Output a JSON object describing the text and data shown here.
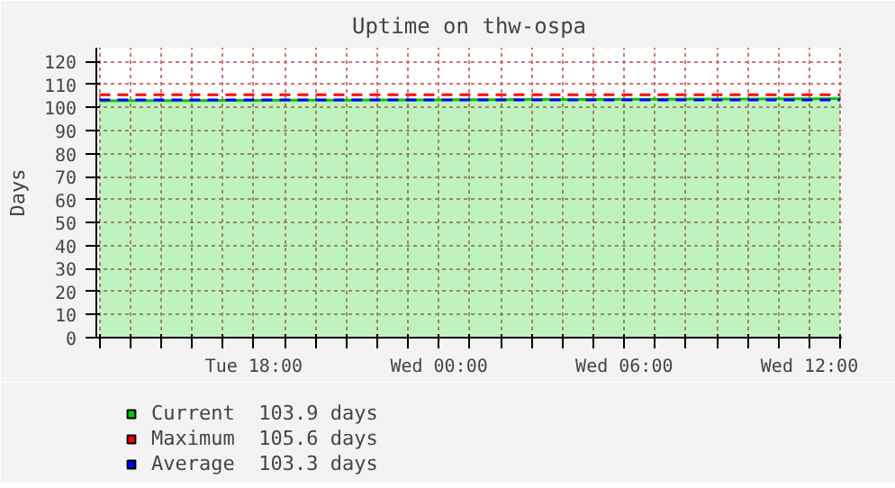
{
  "chart_data": {
    "type": "area",
    "title": "Uptime on thw-ospa",
    "ylabel": "Days",
    "categories": [
      null,
      null,
      null,
      null,
      null,
      "Tue 18:00",
      null,
      null,
      null,
      null,
      null,
      "Wed 00:00",
      null,
      null,
      null,
      null,
      null,
      "Wed 06:00",
      null,
      null,
      null,
      null,
      null,
      "Wed 12:00",
      null
    ],
    "series": [
      {
        "name": "Current  103.9 days",
        "color": "#00cc00",
        "values": [
          102.9,
          103.0,
          103.0,
          103.0,
          103.1,
          103.1,
          103.2,
          103.2,
          103.2,
          103.3,
          103.3,
          103.3,
          103.4,
          103.4,
          103.5,
          103.5,
          103.5,
          103.6,
          103.6,
          103.7,
          103.7,
          103.7,
          103.8,
          103.8,
          103.9
        ]
      },
      {
        "name": "Maximum  105.6 days",
        "type": "line",
        "line_style": "dashed",
        "color": "#ff0000",
        "values": [
          105.6,
          105.6,
          105.6,
          105.6,
          105.6,
          105.6,
          105.6,
          105.6,
          105.6,
          105.6,
          105.6,
          105.6,
          105.6,
          105.6,
          105.6,
          105.6,
          105.6,
          105.6,
          105.6,
          105.6,
          105.6,
          105.6,
          105.6,
          105.6,
          105.6
        ]
      },
      {
        "name": "Average  103.3 days",
        "type": "line",
        "line_style": "dashed",
        "color": "#0000ff",
        "values": [
          103.3,
          103.3,
          103.3,
          103.3,
          103.3,
          103.3,
          103.3,
          103.3,
          103.3,
          103.3,
          103.3,
          103.3,
          103.3,
          103.3,
          103.3,
          103.3,
          103.3,
          103.3,
          103.3,
          103.3,
          103.3,
          103.3,
          103.3,
          103.3,
          103.3
        ]
      }
    ],
    "ylim": [
      0,
      126
    ],
    "yticks": [
      0,
      10,
      20,
      30,
      40,
      50,
      60,
      70,
      80,
      90,
      100,
      110,
      120
    ],
    "grid": true,
    "legend": "bottom"
  }
}
